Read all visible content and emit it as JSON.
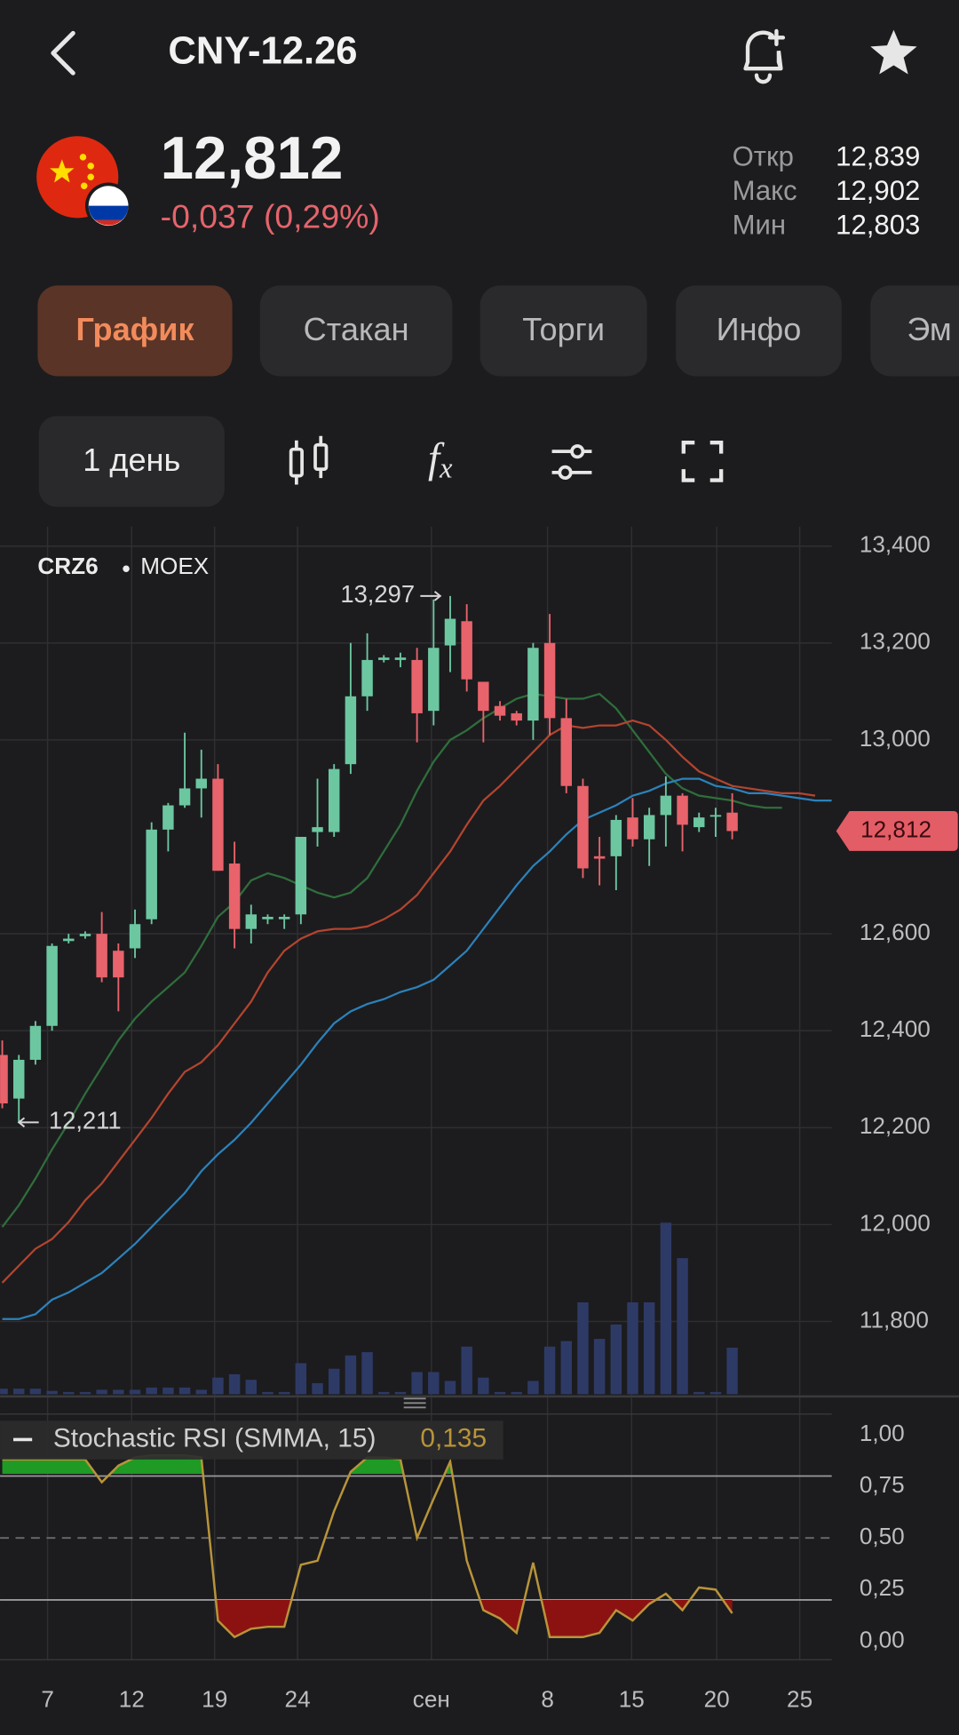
{
  "header": {
    "title": "CNY-12.26"
  },
  "quote": {
    "price": "12,812",
    "change": "-0,037 (0,29%)",
    "stats": [
      {
        "label": "Откр",
        "value": "12,839"
      },
      {
        "label": "Макс",
        "value": "12,902"
      },
      {
        "label": "Мин",
        "value": "12,803"
      }
    ]
  },
  "tabs": [
    "График",
    "Стакан",
    "Торги",
    "Инфо",
    "Эм"
  ],
  "toolbar": {
    "interval": "1 день"
  },
  "chart_data": [
    {
      "type": "candlestick",
      "ticker": "CRZ6",
      "exchange": "MOEX",
      "up_color": "#6cc7a1",
      "down_color": "#e8636b",
      "open": [
        12350,
        12260,
        12340,
        12410,
        12585,
        12595,
        12600,
        12565,
        12570,
        12630,
        12815,
        12865,
        12900,
        12920,
        12745,
        12610,
        12630,
        12630,
        12640,
        12810,
        12810,
        12950,
        13090,
        13165,
        13165,
        13165,
        13060,
        13195,
        13245,
        13120,
        13070,
        13055,
        13040,
        13200,
        13045,
        12905,
        12760,
        12760,
        12840,
        12795,
        12845,
        12885,
        12820,
        12845,
        12850
      ],
      "high": [
        12380,
        12350,
        12420,
        12580,
        12600,
        12605,
        12645,
        12580,
        12650,
        12830,
        12870,
        13015,
        12980,
        12950,
        12790,
        12660,
        12640,
        12640,
        12800,
        12920,
        12950,
        13200,
        13220,
        13175,
        13180,
        13190,
        13290,
        13297,
        13280,
        13120,
        13080,
        13060,
        13200,
        13260,
        13085,
        12920,
        12800,
        12845,
        12880,
        12860,
        12925,
        12890,
        12850,
        12860,
        12890
      ],
      "low": [
        12240,
        12211,
        12330,
        12400,
        12580,
        12590,
        12500,
        12440,
        12550,
        12620,
        12770,
        12860,
        12840,
        12730,
        12570,
        12580,
        12620,
        12610,
        12620,
        12780,
        12800,
        12930,
        13060,
        13160,
        13150,
        12995,
        13030,
        13140,
        13100,
        12995,
        13040,
        13030,
        13000,
        13010,
        12890,
        12715,
        12700,
        12690,
        12780,
        12740,
        12780,
        12770,
        12810,
        12800,
        12795
      ],
      "close": [
        12250,
        12340,
        12410,
        12575,
        12590,
        12600,
        12510,
        12510,
        12620,
        12815,
        12865,
        12900,
        12920,
        12730,
        12610,
        12640,
        12635,
        12635,
        12800,
        12820,
        12940,
        13090,
        13165,
        13170,
        13170,
        13055,
        13190,
        13250,
        13125,
        13060,
        13050,
        13040,
        13190,
        13045,
        12905,
        12735,
        12755,
        12835,
        12795,
        12845,
        12885,
        12825,
        12840,
        12845,
        12812
      ],
      "volume": [
        5,
        5,
        5,
        3,
        2,
        2,
        4,
        4,
        4,
        6,
        6,
        6,
        4,
        15,
        18,
        13,
        2,
        2,
        28,
        10,
        23,
        35,
        38,
        2,
        2,
        20,
        20,
        12,
        43,
        15,
        2,
        2,
        12,
        43,
        48,
        83,
        50,
        63,
        83,
        83,
        155,
        123,
        2,
        2,
        42
      ],
      "volume_color": "#2e3a66",
      "moving_averages": [
        {
          "color": "#2f6e3c",
          "values": [
            11995,
            12040,
            12095,
            12155,
            12210,
            12270,
            12325,
            12380,
            12425,
            12460,
            12490,
            12520,
            12575,
            12635,
            12665,
            12710,
            12725,
            12715,
            12700,
            12685,
            12675,
            12685,
            12715,
            12770,
            12825,
            12895,
            12955,
            13000,
            13020,
            13045,
            13065,
            13085,
            13095,
            13090,
            13085,
            13085,
            13095,
            13065,
            13020,
            12975,
            12930,
            12900,
            12885,
            12880,
            12875,
            12865,
            12860,
            12860
          ]
        },
        {
          "color": "#b4442f",
          "values": [
            11880,
            11915,
            11950,
            11970,
            12005,
            12050,
            12085,
            12130,
            12175,
            12220,
            12270,
            12315,
            12335,
            12370,
            12415,
            12460,
            12520,
            12565,
            12590,
            12605,
            12610,
            12610,
            12615,
            12630,
            12650,
            12680,
            12725,
            12770,
            12825,
            12875,
            12905,
            12940,
            12975,
            13010,
            13030,
            13025,
            13030,
            13030,
            13040,
            13030,
            13000,
            12965,
            12935,
            12920,
            12905,
            12900,
            12895,
            12890,
            12890,
            12885
          ]
        },
        {
          "color": "#2c82bb",
          "values": [
            11805,
            11805,
            11815,
            11845,
            11860,
            11880,
            11900,
            11930,
            11960,
            11995,
            12030,
            12065,
            12110,
            12145,
            12175,
            12210,
            12250,
            12290,
            12330,
            12375,
            12415,
            12440,
            12455,
            12465,
            12480,
            12490,
            12505,
            12535,
            12565,
            12610,
            12655,
            12700,
            12740,
            12770,
            12805,
            12835,
            12850,
            12865,
            12885,
            12895,
            12910,
            12920,
            12920,
            12905,
            12900,
            12890,
            12890,
            12885,
            12880,
            12875,
            12875
          ]
        }
      ],
      "ylim": [
        11650,
        13440
      ],
      "yticks": [
        {
          "value": 13400,
          "label": "13,400"
        },
        {
          "value": 13200,
          "label": "13,200"
        },
        {
          "value": 13000,
          "label": "13,000"
        },
        {
          "value": 12600,
          "label": "12,600"
        },
        {
          "value": 12400,
          "label": "12,400"
        },
        {
          "value": 12200,
          "label": "12,200"
        },
        {
          "value": 12000,
          "label": "12,000"
        },
        {
          "value": 11800,
          "label": "11,800"
        }
      ],
      "grid": true,
      "max": {
        "value": 13297,
        "label": "13,297"
      },
      "min": {
        "value": 12211,
        "label": "12,211"
      },
      "last": {
        "value": 12812,
        "label": "12,812"
      },
      "date_labels": [
        "7",
        "12",
        "19",
        "24",
        "сен",
        "8",
        "15",
        "20",
        "25"
      ]
    },
    {
      "type": "line",
      "title": "Stochastic RSI (SMMA, 15)",
      "color": "#b8943a",
      "values": [
        0.88,
        0.88,
        0.88,
        0.88,
        0.88,
        0.88,
        0.77,
        0.85,
        0.89,
        0.9,
        0.9,
        0.9,
        0.89,
        0.1,
        0.02,
        0.06,
        0.07,
        0.07,
        0.37,
        0.39,
        0.63,
        0.82,
        0.89,
        0.89,
        0.88,
        0.5,
        0.69,
        0.87,
        0.39,
        0.15,
        0.11,
        0.04,
        0.38,
        0.02,
        0.02,
        0.02,
        0.04,
        0.15,
        0.1,
        0.18,
        0.23,
        0.15,
        0.26,
        0.25,
        0.135
      ],
      "last": {
        "value": 0.135,
        "label": "0,135"
      },
      "upper": 0.8,
      "middle": 0.5,
      "lower": 0.2,
      "upper_fill": "#1f9a24",
      "lower_fill": "#8c1212",
      "ylim": [
        -0.09,
        1.1
      ],
      "yticks": [
        {
          "value": 1,
          "label": "1,00"
        },
        {
          "value": 0.75,
          "label": "0,75"
        },
        {
          "value": 0.5,
          "label": "0,50"
        },
        {
          "value": 0.25,
          "label": "0,25"
        },
        {
          "value": 0,
          "label": "0,00"
        }
      ]
    }
  ]
}
